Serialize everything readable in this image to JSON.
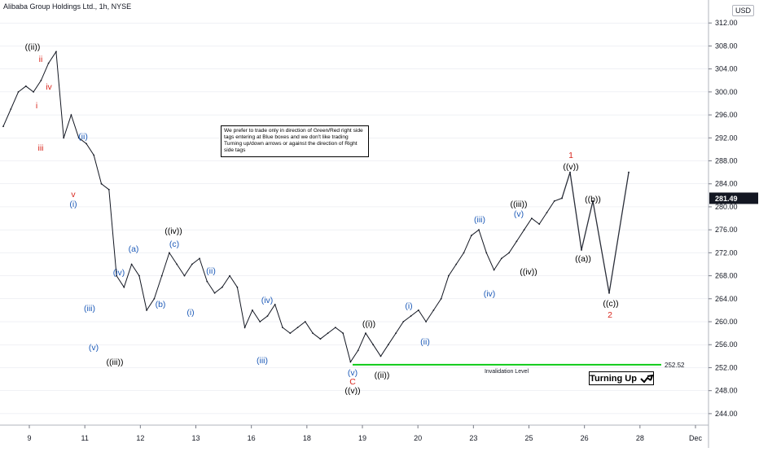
{
  "header": {
    "title": "Alibaba Group Holdings Ltd., 1h, NYSE",
    "currency": "USD"
  },
  "note": "We prefer to trade only in direction of Green/Red right side tags entering at Blue boxes and we don't like trading Turning up/down arrows or against the direction of Right side tags",
  "badge": {
    "label": "Turning Up",
    "icon": "diagonal-up-arrow-icon"
  },
  "colors": {
    "candle": "#131722",
    "invalidation": "#00c80a",
    "label_black": "#000000",
    "label_blue": "#1e5bb8",
    "label_red": "#d9271e",
    "grid": "#e0e3eb",
    "price_tag": "#131722"
  },
  "chart_data": {
    "type": "line",
    "title": "Alibaba Group Holdings Ltd., 1h, NYSE",
    "ylabel": "USD",
    "ylim": [
      242,
      316
    ],
    "yticks": [
      244,
      248,
      252,
      256,
      260,
      264,
      268,
      272,
      276,
      280,
      284,
      288,
      292,
      296,
      300,
      304,
      308,
      312
    ],
    "x_tick_labels": [
      "9",
      "11",
      "12",
      "13",
      "16",
      "18",
      "19",
      "20",
      "23",
      "25",
      "26",
      "28",
      "Dec"
    ],
    "last_price": 281.49,
    "series": [
      {
        "values": [
          294,
          297,
          300,
          301,
          300,
          302,
          305,
          307,
          292,
          296,
          292,
          291,
          289,
          284,
          283,
          268,
          266,
          270,
          268,
          262,
          264,
          268,
          272,
          270,
          268,
          270,
          271,
          267,
          265,
          266,
          268,
          266,
          259,
          262,
          260,
          261,
          263,
          259,
          258,
          259,
          260,
          258,
          257,
          258,
          259,
          258,
          253,
          255,
          258,
          256,
          254,
          256,
          258,
          260,
          261,
          262,
          260,
          262,
          264,
          268,
          270,
          272,
          275,
          276,
          272,
          269,
          271,
          272,
          274,
          276,
          278,
          277,
          279,
          281,
          281.49
        ]
      },
      {
        "name": "",
        "values": [
          281.49,
          286,
          272.5,
          281,
          265,
          286
        ]
      }
    ],
    "invalidation": {
      "price": 252.52,
      "label": "Invalidation Level"
    },
    "wave_labels": [
      {
        "text": "((ii))",
        "color": "black"
      },
      {
        "text": "ii",
        "color": "red"
      },
      {
        "text": "iv",
        "color": "red"
      },
      {
        "text": "i",
        "color": "red"
      },
      {
        "text": "iii",
        "color": "red"
      },
      {
        "text": "v",
        "color": "red"
      },
      {
        "text": "(ii)",
        "color": "blue"
      },
      {
        "text": "(i)",
        "color": "blue"
      },
      {
        "text": "(iv)",
        "color": "blue"
      },
      {
        "text": "(iii)",
        "color": "blue"
      },
      {
        "text": "(v)",
        "color": "blue"
      },
      {
        "text": "((iii))",
        "color": "black"
      },
      {
        "text": "(a)",
        "color": "blue"
      },
      {
        "text": "(b)",
        "color": "blue"
      },
      {
        "text": "((iv))",
        "color": "black"
      },
      {
        "text": "(c)",
        "color": "blue"
      },
      {
        "text": "(i)",
        "color": "blue"
      },
      {
        "text": "(ii)",
        "color": "blue"
      },
      {
        "text": "(iv)",
        "color": "blue"
      },
      {
        "text": "(iii)",
        "color": "blue"
      },
      {
        "text": "(v)",
        "color": "blue"
      },
      {
        "text": "C",
        "color": "red"
      },
      {
        "text": "((v))",
        "color": "black"
      },
      {
        "text": "((i))",
        "color": "black"
      },
      {
        "text": "((ii))",
        "color": "black"
      },
      {
        "text": "(i)",
        "color": "blue"
      },
      {
        "text": "(ii)",
        "color": "blue"
      },
      {
        "text": "(iii)",
        "color": "blue"
      },
      {
        "text": "(iv)",
        "color": "blue"
      },
      {
        "text": "((iii))",
        "color": "black"
      },
      {
        "text": "(v)",
        "color": "blue"
      },
      {
        "text": "((iv))",
        "color": "black"
      },
      {
        "text": "1",
        "color": "red"
      },
      {
        "text": "((v))",
        "color": "black"
      },
      {
        "text": "((b))",
        "color": "black"
      },
      {
        "text": "((a))",
        "color": "black"
      },
      {
        "text": "((c))",
        "color": "black"
      },
      {
        "text": "2",
        "color": "red"
      }
    ]
  }
}
